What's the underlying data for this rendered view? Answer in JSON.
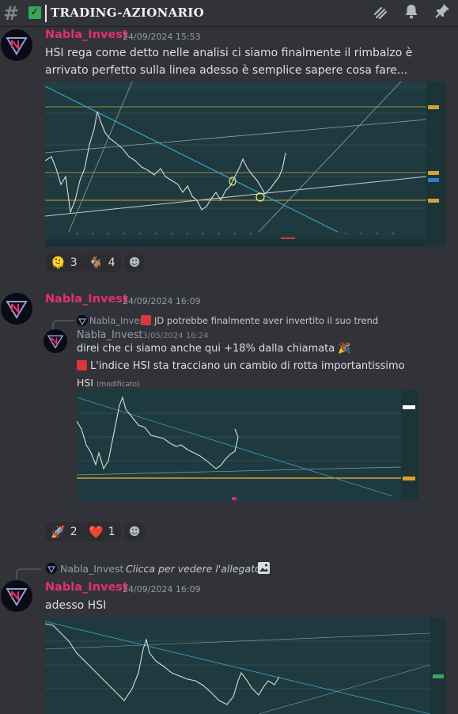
{
  "channel": {
    "name": "TRADING-AZIONARIO"
  },
  "messages": [
    {
      "author": "Nabla_Invest",
      "timestamp": "24/09/2024 15:53",
      "text": "HSI rega come detto nelle analisi ci siamo finalmente il rimbalzo è arrivato perfetto sulla linea adesso è semplice sapere cosa fare...",
      "reactions": [
        {
          "emoji": "🫠",
          "count": "3"
        },
        {
          "emoji": "🐐",
          "count": "4"
        }
      ]
    },
    {
      "author": "Nabla_Invest",
      "timestamp": "24/09/2024 16:09",
      "reply": {
        "author": "Nabla_Invest",
        "text": "JD potrebbe finalmente aver invertito il suo trend"
      },
      "forward": {
        "author": "Nabla_Invest",
        "timestamp": "13/05/2024 16:24",
        "line1": "direi che ci siamo anche qui +18% dalla chiamata",
        "line2": "L'indice HSI sta tracciano un cambio di rotta importantissimo",
        "label": "HSI",
        "edited": "(modificato)"
      },
      "reactions": [
        {
          "emoji": "🚀",
          "count": "2"
        },
        {
          "emoji": "❤️",
          "count": "1"
        }
      ]
    },
    {
      "author": "Nabla_Invest",
      "timestamp": "24/09/2024 16:09",
      "reply": {
        "author": "Nabla_Invest",
        "text": "Clicca per vedere l'allegato"
      },
      "text": "adesso HSI"
    }
  ],
  "colors": {
    "background": "#313338",
    "username": "#e3326a",
    "chart_bg": "#1f3a3f"
  }
}
